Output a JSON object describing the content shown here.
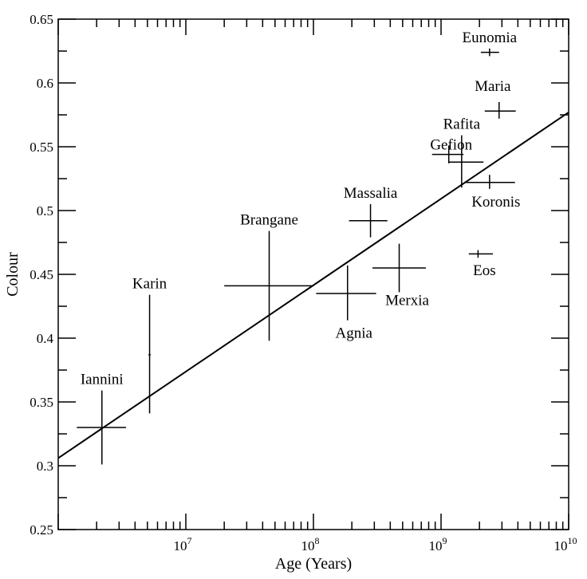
{
  "chart_data": {
    "type": "scatter",
    "xscale": "log",
    "xlim": [
      1000000,
      10000000000
    ],
    "ylim": [
      0.25,
      0.65
    ],
    "xlabel": "Age (Years)",
    "ylabel": "Colour",
    "y_ticks": [
      0.25,
      0.3,
      0.35,
      0.4,
      0.45,
      0.5,
      0.55,
      0.6,
      0.65
    ],
    "y_tick_labels": [
      "0.25",
      "0.3",
      "0.35",
      "0.4",
      "0.45",
      "0.5",
      "0.55",
      "0.6",
      "0.65"
    ],
    "x_ticks": [
      {
        "value": 10000000,
        "base": "10",
        "exp": "7"
      },
      {
        "value": 100000000,
        "base": "10",
        "exp": "8"
      },
      {
        "value": 1000000000,
        "base": "10",
        "exp": "9"
      },
      {
        "value": 10000000000,
        "base": "10",
        "exp": "10"
      }
    ],
    "points": [
      {
        "name": "Iannini",
        "x": 2200000,
        "y": 0.33,
        "x_err": [
          1400000,
          3400000
        ],
        "y_err": [
          0.301,
          0.359
        ],
        "label_pos": "above-left"
      },
      {
        "name": "Karin",
        "x": 5200000,
        "y": 0.387,
        "x_err": [
          5100000,
          5300000
        ],
        "y_err": [
          0.341,
          0.434
        ],
        "label_pos": "above"
      },
      {
        "name": "Brangane",
        "x": 45000000,
        "y": 0.441,
        "x_err": [
          20000000,
          100000000
        ],
        "y_err": [
          0.398,
          0.484
        ],
        "label_pos": "above"
      },
      {
        "name": "Agnia",
        "x": 185000000,
        "y": 0.435,
        "x_err": [
          105000000,
          310000000
        ],
        "y_err": [
          0.414,
          0.457
        ],
        "label_pos": "below"
      },
      {
        "name": "Massalia",
        "x": 280000000,
        "y": 0.492,
        "x_err": [
          190000000,
          380000000
        ],
        "y_err": [
          0.479,
          0.505
        ],
        "label_pos": "above"
      },
      {
        "name": "Merxia",
        "x": 470000000,
        "y": 0.455,
        "x_err": [
          290000000,
          760000000
        ],
        "y_err": [
          0.436,
          0.474
        ],
        "label_pos": "below-right"
      },
      {
        "name": "Gefion",
        "x": 1150000000,
        "y": 0.544,
        "x_err": [
          850000000,
          1500000000
        ],
        "y_err": [
          0.537,
          0.551
        ],
        "label_pos": "left"
      },
      {
        "name": "Rafita",
        "x": 1450000000,
        "y": 0.538,
        "x_err": [
          1150000000,
          2150000000
        ],
        "y_err": [
          0.518,
          0.559
        ],
        "label_pos": "above"
      },
      {
        "name": "Koronis",
        "x": 2400000000,
        "y": 0.522,
        "x_err": [
          1550000000,
          3800000000
        ],
        "y_err": [
          0.517,
          0.528
        ],
        "label_pos": "below"
      },
      {
        "name": "Eos",
        "x": 1950000000,
        "y": 0.466,
        "x_err": [
          1650000000,
          2550000000
        ],
        "y_err": [
          0.463,
          0.469
        ],
        "label_pos": "below"
      },
      {
        "name": "Maria",
        "x": 2850000000,
        "y": 0.578,
        "x_err": [
          2200000000,
          3850000000
        ],
        "y_err": [
          0.572,
          0.585
        ],
        "label_pos": "above-right"
      },
      {
        "name": "Eunomia",
        "x": 2400000000,
        "y": 0.624,
        "x_err": [
          2050000000,
          2850000000
        ],
        "y_err": [
          0.621,
          0.627
        ],
        "label_pos": "above"
      }
    ],
    "fit_line": {
      "x": [
        1000000,
        10000000000
      ],
      "y": [
        0.306,
        0.577
      ]
    },
    "grid": false,
    "legend": "none"
  }
}
